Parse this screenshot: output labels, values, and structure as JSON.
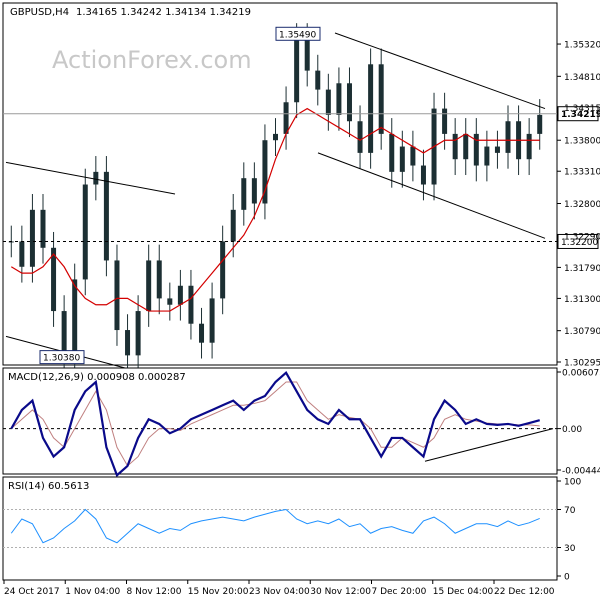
{
  "header": {
    "symbol": "GBPUSD,H4",
    "ohlc": "1.34165 1.34242 1.34134 1.34219",
    "watermark": "ActionForex.com"
  },
  "chart_data": [
    {
      "type": "candlestick",
      "title": "GBPUSD,H4",
      "y_ticks": [
        "1.35320",
        "1.34810",
        "1.33800",
        "1.33310",
        "1.32800",
        "1.31790",
        "1.31300",
        "1.30790",
        "1.30295"
      ],
      "y_ticks_partial": [
        "1.34315",
        "1.32290"
      ],
      "ylim": [
        1.30295,
        1.357
      ],
      "current_price_label": "1.34219",
      "current_price": 1.34219,
      "level_line_label": "1.32200",
      "level_line": 1.322,
      "annotations": [
        {
          "label": "1.35490",
          "value": 1.3549
        },
        {
          "label": "1.30380",
          "value": 1.3038
        }
      ],
      "price_series": [
        1.322,
        1.318,
        1.327,
        1.321,
        1.311,
        1.303,
        1.316,
        1.331,
        1.333,
        1.319,
        1.308,
        1.304,
        1.311,
        1.319,
        1.313,
        1.312,
        1.315,
        1.309,
        1.306,
        1.313,
        1.322,
        1.327,
        1.332,
        1.328,
        1.338,
        1.339,
        1.344,
        1.354,
        1.349,
        1.346,
        1.342,
        1.347,
        1.341,
        1.336,
        1.35,
        1.339,
        1.333,
        1.337,
        1.334,
        1.331,
        1.343,
        1.339,
        1.335,
        1.339,
        1.334,
        1.337,
        1.336,
        1.341,
        1.335,
        1.339,
        1.342
      ],
      "moving_average": [
        1.318,
        1.317,
        1.317,
        1.318,
        1.32,
        1.318,
        1.315,
        1.313,
        1.312,
        1.312,
        1.313,
        1.313,
        1.312,
        1.311,
        1.311,
        1.311,
        1.312,
        1.313,
        1.315,
        1.317,
        1.319,
        1.321,
        1.323,
        1.326,
        1.33,
        1.335,
        1.339,
        1.342,
        1.343,
        1.342,
        1.341,
        1.34,
        1.339,
        1.338,
        1.339,
        1.34,
        1.339,
        1.338,
        1.337,
        1.336,
        1.337,
        1.338,
        1.338,
        1.339,
        1.338,
        1.338,
        1.338,
        1.338,
        1.338,
        1.338,
        1.338
      ]
    },
    {
      "type": "line",
      "title": "MACD(12,26,9) 0.000908 0.000287",
      "y_ticks": [
        "0.006073",
        "0.00",
        "-0.004441"
      ],
      "ylim": [
        -0.004441,
        0.006073
      ],
      "macd": [
        0.0,
        0.002,
        0.003,
        -0.001,
        -0.003,
        -0.002,
        0.002,
        0.004,
        0.005,
        -0.002,
        -0.005,
        -0.004,
        -0.001,
        0.001,
        0.0005,
        -0.0005,
        0.0,
        0.001,
        0.0015,
        0.002,
        0.0025,
        0.003,
        0.002,
        0.003,
        0.0035,
        0.005,
        0.006,
        0.004,
        0.002,
        0.001,
        0.0005,
        0.002,
        0.001,
        0.001,
        -0.001,
        -0.003,
        -0.001,
        -0.001,
        -0.002,
        -0.003,
        0.001,
        0.003,
        0.002,
        0.0005,
        0.001,
        0.0005,
        0.0004,
        0.0005,
        0.0003,
        0.0006,
        0.000908
      ],
      "signal": [
        0.0,
        0.001,
        0.002,
        0.001,
        -0.001,
        -0.002,
        0.0,
        0.002,
        0.004,
        0.002,
        -0.002,
        -0.004,
        -0.003,
        -0.001,
        0.0,
        0.0,
        -0.0002,
        0.0005,
        0.001,
        0.0015,
        0.002,
        0.0025,
        0.0025,
        0.0027,
        0.003,
        0.004,
        0.005,
        0.005,
        0.003,
        0.002,
        0.001,
        0.0015,
        0.0012,
        0.001,
        0.0,
        -0.002,
        -0.002,
        -0.001,
        -0.0015,
        -0.002,
        -0.001,
        0.001,
        0.0015,
        0.001,
        0.0008,
        0.0006,
        0.0005,
        0.0005,
        0.0004,
        0.0004,
        0.000287
      ]
    },
    {
      "type": "line",
      "title": "RSI(14) 60.5613",
      "y_ticks": [
        "100",
        "70",
        "30",
        "0"
      ],
      "ylim": [
        0,
        100
      ],
      "values": [
        45,
        60,
        55,
        35,
        40,
        50,
        58,
        70,
        60,
        40,
        35,
        45,
        55,
        50,
        45,
        50,
        48,
        55,
        58,
        60,
        62,
        60,
        58,
        62,
        65,
        68,
        70,
        60,
        55,
        58,
        55,
        60,
        52,
        55,
        45,
        50,
        52,
        48,
        45,
        58,
        62,
        55,
        45,
        50,
        55,
        55,
        52,
        58,
        53,
        56,
        60.5613
      ]
    }
  ],
  "x_axis": {
    "labels": [
      "24 Oct 2017",
      "1 Nov 04:00",
      "8 Nov 12:00",
      "15 Nov 20:00",
      "23 Nov 04:00",
      "30 Nov 12:00",
      "7 Dec 20:00",
      "15 Dec 04:00",
      "22 Dec 12:00"
    ]
  }
}
